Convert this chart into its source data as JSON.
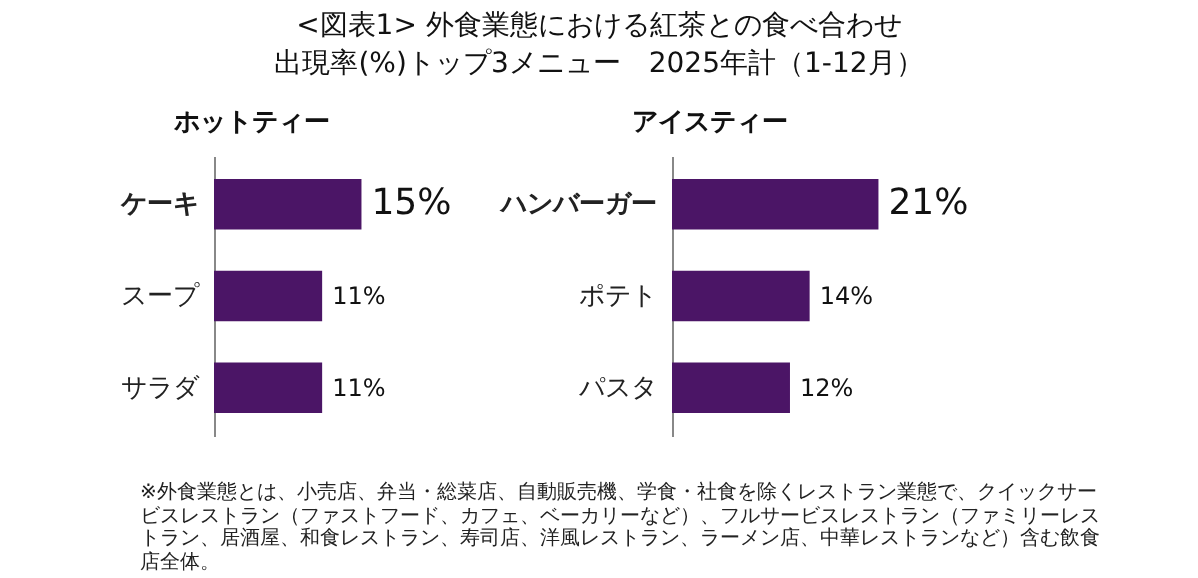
{
  "chart_data": [
    {
      "type": "other",
      "title": "<図表1> 外食業態における紅茶との食べ合わせ",
      "subtitle": "出現率(%)トップ3メニュー　2025年計（1-12月）",
      "annotations": [
        "※外食業態とは、小売店、弁当・総菜店、自動販売機、学食・社食を除くレストラン業態で、クイックサービスレストラン（ファストフード、カフェ、ベーカリーなど）、フルサービスレストラン（ファミリーレストラン、居酒屋、和食レストラン、寿司店、洋風レストラン、ラーメン店、中華レストランなど）含む飲食店全体。"
      ]
    },
    {
      "type": "bar",
      "orientation": "horizontal",
      "title": "ホットティー",
      "categories": [
        "ケーキ",
        "スープ",
        "サラダ"
      ],
      "values": [
        15,
        11,
        11
      ],
      "value_labels": [
        "15%",
        "11%",
        "11%"
      ],
      "color": "#4b1566"
    },
    {
      "type": "bar",
      "orientation": "horizontal",
      "title": "アイスティー",
      "categories": [
        "ハンバーガー",
        "ポテト",
        "パスタ"
      ],
      "values": [
        21,
        14,
        12
      ],
      "value_labels": [
        "21%",
        "14%",
        "12%"
      ],
      "color": "#4b1566"
    }
  ]
}
